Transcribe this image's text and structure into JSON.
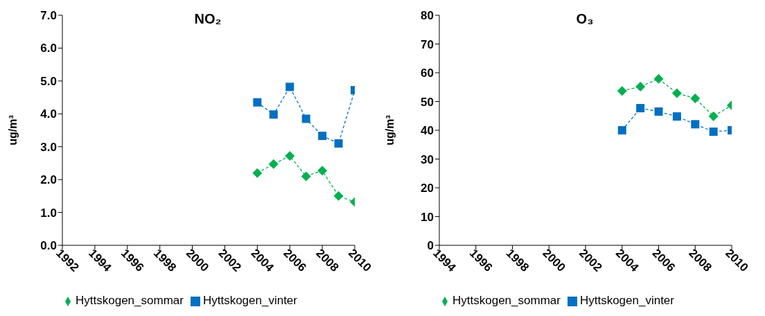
{
  "chart_data": [
    {
      "type": "line",
      "title": "NO₂",
      "ylabel": "ug/m³",
      "x": [
        2004,
        2005,
        2006,
        2007,
        2008,
        2009,
        2010
      ],
      "xlim": [
        1992,
        2010
      ],
      "xticks": [
        1992,
        1994,
        1996,
        1998,
        2000,
        2002,
        2004,
        2006,
        2008,
        2010
      ],
      "ylim": [
        0,
        7
      ],
      "yticks": [
        {
          "value": 0,
          "label": "0.0"
        },
        {
          "value": 1,
          "label": "1.0"
        },
        {
          "value": 2,
          "label": "2.0"
        },
        {
          "value": 3,
          "label": "3.0"
        },
        {
          "value": 4,
          "label": "4.0"
        },
        {
          "value": 5,
          "label": "5.0"
        },
        {
          "value": 6,
          "label": "6.0"
        },
        {
          "value": 7,
          "label": "7.0"
        }
      ],
      "legend": "bottom",
      "line_style": "dashed",
      "series": [
        {
          "name": "Hyttskogen_sommar",
          "color": "#00b050",
          "marker": "diamond",
          "values": [
            2.2,
            2.47,
            2.72,
            2.1,
            2.27,
            1.5,
            1.32
          ]
        },
        {
          "name": "Hyttskogen_vinter",
          "color": "#0070c0",
          "marker": "square",
          "values": [
            4.35,
            3.98,
            4.82,
            3.85,
            3.33,
            3.1,
            4.72
          ]
        }
      ]
    },
    {
      "type": "line",
      "title": "O₃",
      "ylabel": "ug/m³",
      "x": [
        2004,
        2005,
        2006,
        2007,
        2008,
        2009,
        2010
      ],
      "xlim": [
        1994,
        2010
      ],
      "xticks": [
        1994,
        1996,
        1998,
        2000,
        2002,
        2004,
        2006,
        2008,
        2010
      ],
      "ylim": [
        0,
        80
      ],
      "yticks": [
        0,
        10,
        20,
        30,
        40,
        50,
        60,
        70,
        80
      ],
      "legend": "bottom",
      "line_style": "dashed",
      "series": [
        {
          "name": "Hyttskogen_sommar",
          "color": "#00b050",
          "marker": "diamond",
          "values": [
            53.7,
            55.2,
            57.9,
            52.9,
            51.1,
            44.9,
            48.7
          ]
        },
        {
          "name": "Hyttskogen_vinter",
          "color": "#0070c0",
          "marker": "square",
          "values": [
            40,
            47.7,
            46.5,
            44.8,
            42.1,
            39.5,
            40
          ]
        }
      ]
    }
  ]
}
